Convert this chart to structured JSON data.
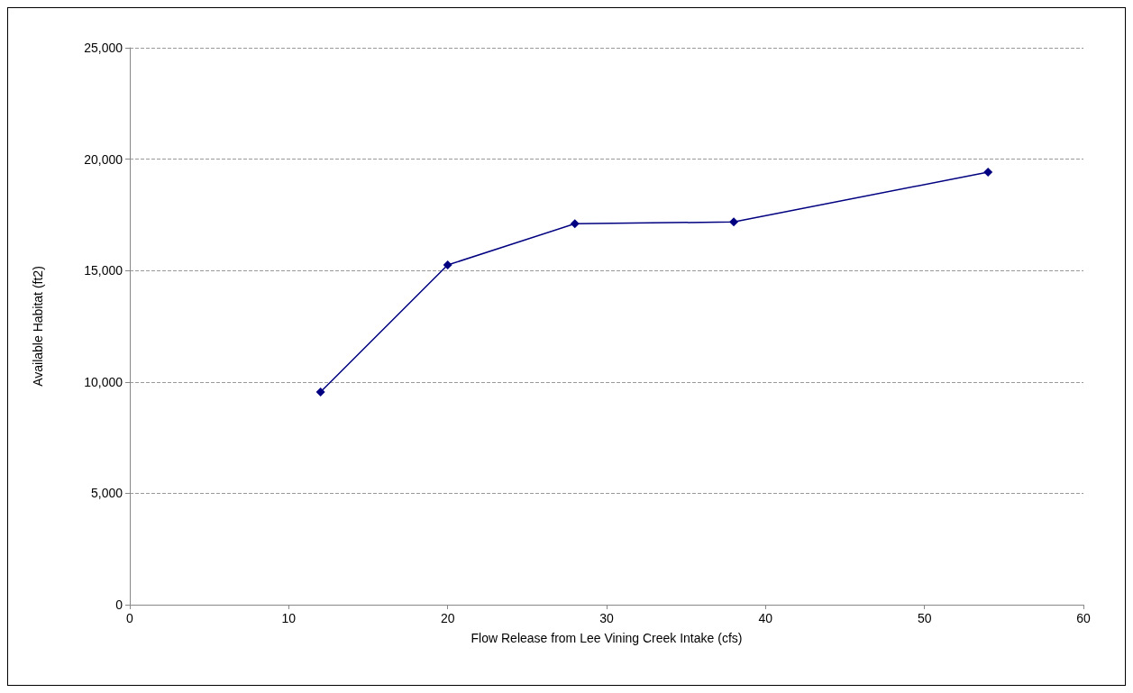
{
  "chart_data": {
    "type": "line",
    "xlabel": "Flow Release from Lee Vining Creek Intake (cfs)",
    "ylabel": "Available Habitat (ft2)",
    "x": [
      12,
      20,
      28,
      38,
      54
    ],
    "series": [
      {
        "color": "#000080",
        "values": [
          9550,
          15250,
          17100,
          17180,
          19420
        ]
      }
    ],
    "xlim": [
      0,
      60
    ],
    "xticks": [
      0,
      10,
      20,
      30,
      40,
      50,
      60
    ],
    "ylim": [
      0,
      25000
    ],
    "yticks": [
      0,
      {
        "value": 5000,
        "label": "5,000"
      },
      {
        "value": 10000,
        "label": "10,000"
      },
      {
        "value": 15000,
        "label": "15,000"
      },
      {
        "value": 20000,
        "label": "20,000"
      },
      {
        "value": 25000,
        "label": "25,000"
      }
    ],
    "grid": "y",
    "marker": "diamond",
    "line_style": "solid"
  }
}
